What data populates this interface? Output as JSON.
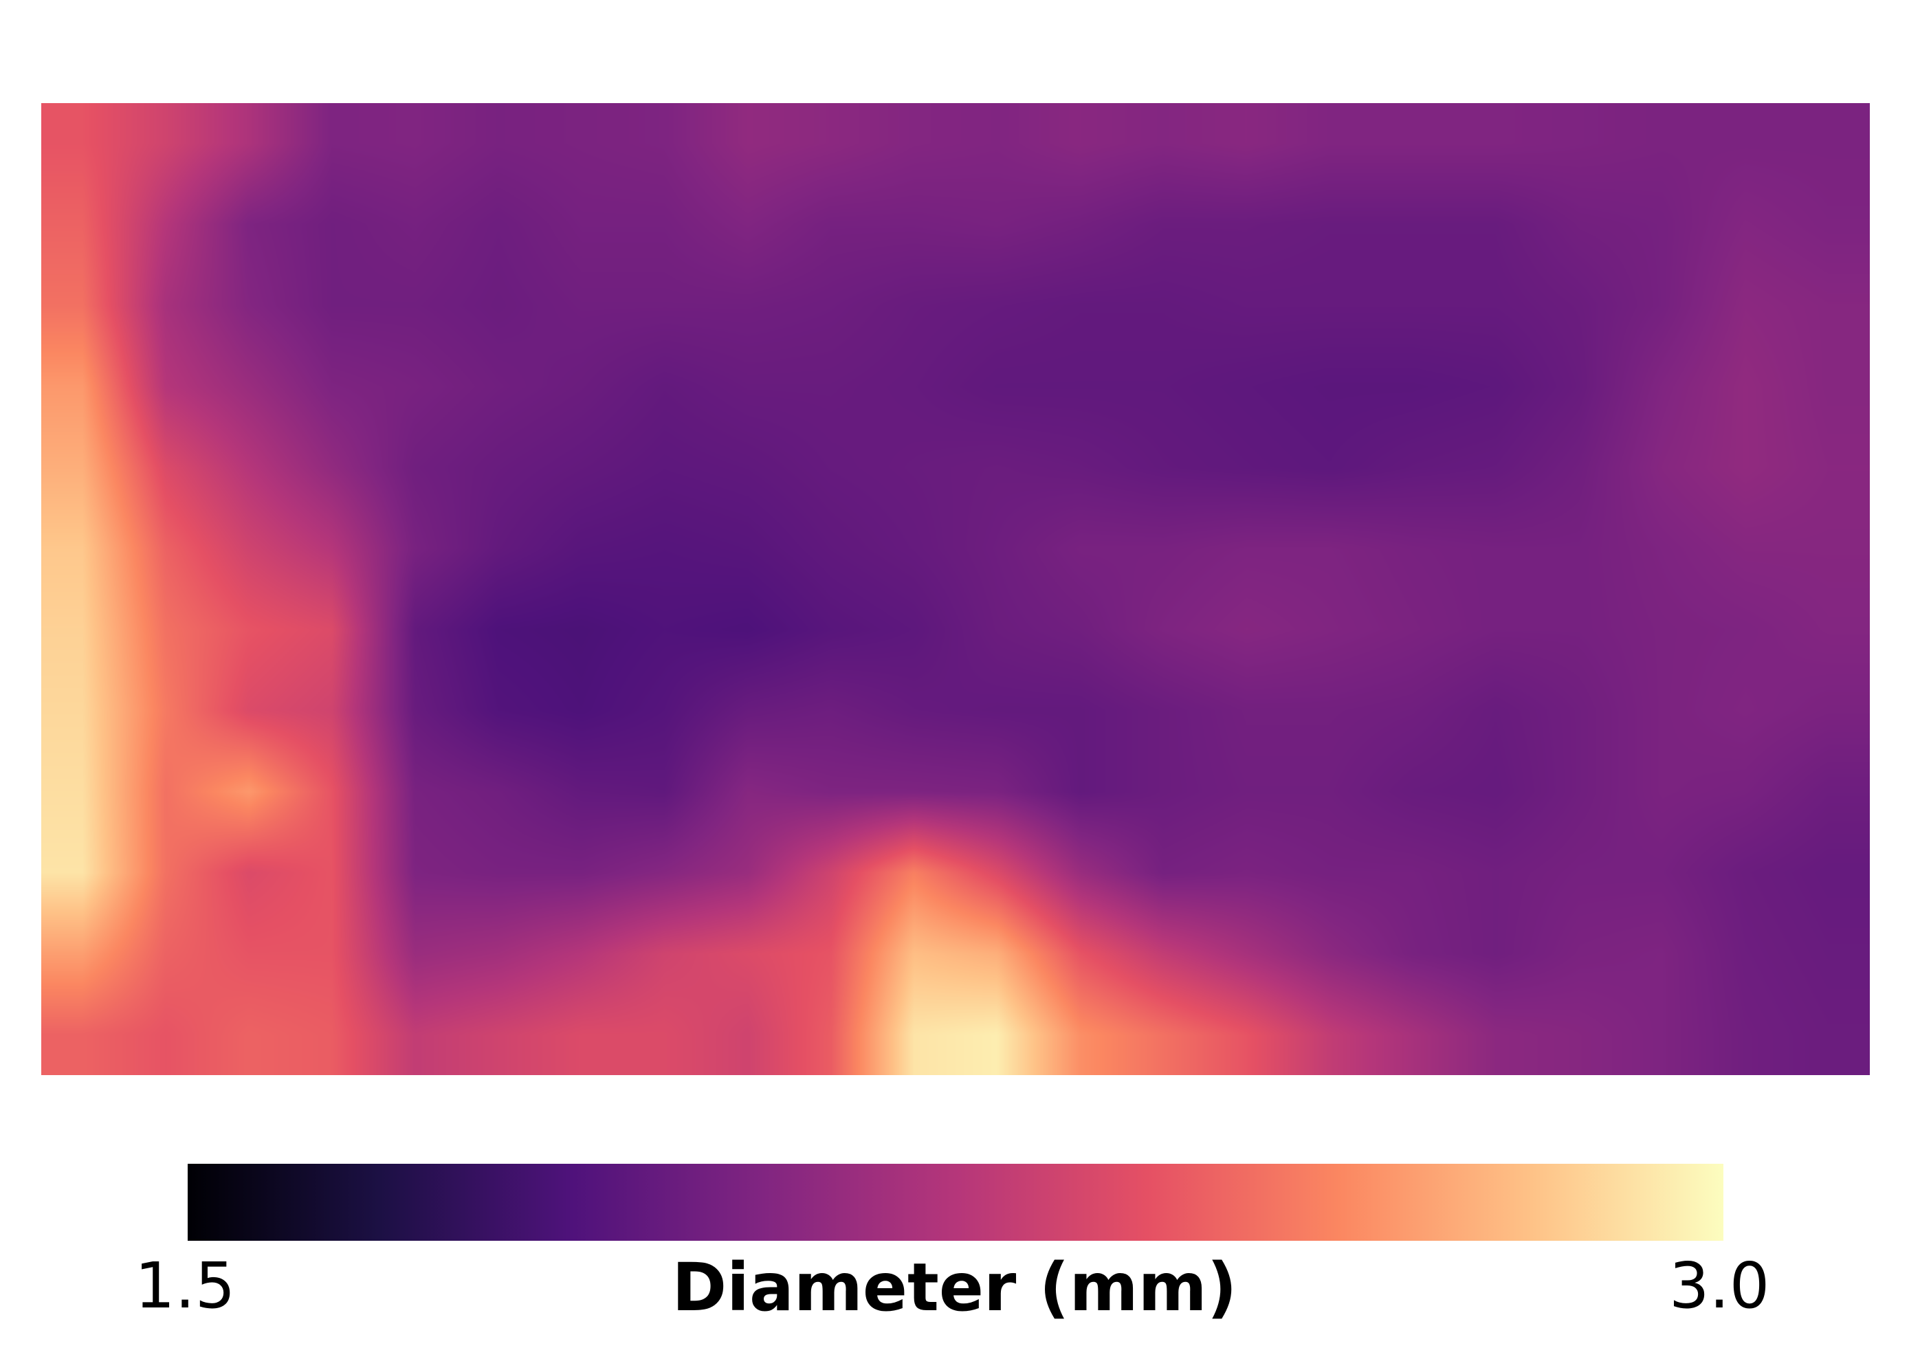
{
  "chart_data": {
    "type": "heatmap",
    "title": "",
    "xlabel": "",
    "ylabel": "",
    "grid": false,
    "colorscale": "magma",
    "colorbar": {
      "orientation": "horizontal",
      "placement": "bottom",
      "label": "Diameter (mm)",
      "min": 1.5,
      "max": 3.0,
      "min_label": "1.5",
      "max_label": "3.0",
      "stops": [
        "#000004",
        "#1c1044",
        "#4f127b",
        "#812581",
        "#b5367a",
        "#e55064",
        "#fb8761",
        "#fec287",
        "#fcfdbf"
      ]
    },
    "grid_size": {
      "rows": 12,
      "cols": 22
    },
    "values": [
      [
        2.45,
        2.35,
        2.22,
        2.05,
        2.06,
        2.03,
        2.04,
        2.05,
        2.12,
        2.1,
        2.07,
        2.06,
        2.09,
        2.07,
        2.09,
        2.06,
        2.06,
        2.06,
        2.05,
        2.04,
        2.04,
        2.04
      ],
      [
        2.5,
        2.25,
        2.05,
        2.0,
        2.02,
        1.99,
        2.02,
        2.02,
        2.06,
        2.02,
        2.02,
        2.03,
        2.01,
        1.98,
        1.98,
        1.97,
        1.97,
        1.97,
        2.01,
        2.02,
        2.07,
        2.05
      ],
      [
        2.55,
        2.2,
        2.07,
        2.0,
        2.0,
        1.98,
        2.0,
        2.0,
        2.0,
        1.99,
        1.97,
        1.96,
        1.95,
        1.95,
        1.96,
        1.96,
        1.96,
        1.96,
        1.98,
        2.02,
        2.1,
        2.08
      ],
      [
        2.68,
        2.25,
        2.15,
        2.05,
        2.03,
        2.0,
        1.98,
        1.95,
        1.97,
        1.97,
        1.96,
        1.94,
        1.94,
        1.94,
        1.93,
        1.92,
        1.92,
        1.93,
        1.97,
        2.06,
        2.12,
        2.08
      ],
      [
        2.75,
        2.4,
        2.25,
        2.12,
        2.0,
        1.97,
        1.95,
        1.93,
        1.94,
        1.96,
        1.97,
        1.98,
        1.97,
        1.95,
        1.94,
        1.93,
        1.95,
        1.96,
        2.0,
        2.08,
        2.12,
        2.09
      ],
      [
        2.83,
        2.5,
        2.35,
        2.25,
        2.03,
        1.95,
        1.91,
        1.9,
        1.91,
        1.94,
        1.96,
        1.99,
        2.03,
        2.03,
        2.05,
        2.05,
        2.03,
        2.02,
        2.02,
        2.05,
        2.08,
        2.08
      ],
      [
        2.86,
        2.55,
        2.45,
        2.4,
        1.95,
        1.87,
        1.86,
        1.88,
        1.87,
        1.91,
        1.93,
        1.98,
        2.0,
        2.05,
        2.08,
        2.06,
        2.04,
        2.02,
        2.02,
        2.04,
        2.05,
        2.07
      ],
      [
        2.88,
        2.58,
        2.4,
        2.35,
        1.97,
        1.89,
        1.87,
        1.9,
        1.97,
        1.99,
        1.96,
        1.95,
        1.95,
        1.98,
        2.01,
        2.01,
        2.0,
        1.97,
        2.0,
        2.04,
        2.06,
        2.04
      ],
      [
        2.9,
        2.55,
        2.68,
        2.45,
        2.03,
        2.0,
        1.95,
        1.94,
        2.08,
        2.05,
        2.05,
        2.04,
        1.95,
        1.98,
        2.0,
        2.0,
        1.97,
        1.96,
        2.0,
        2.04,
        2.03,
        1.99
      ],
      [
        2.92,
        2.55,
        2.4,
        2.45,
        2.05,
        2.03,
        2.03,
        2.08,
        2.15,
        2.35,
        2.6,
        2.4,
        2.15,
        2.02,
        2.04,
        2.02,
        2.02,
        2.0,
        2.02,
        2.02,
        1.98,
        1.96
      ],
      [
        2.7,
        2.5,
        2.45,
        2.45,
        2.15,
        2.18,
        2.25,
        2.35,
        2.4,
        2.45,
        2.8,
        2.75,
        2.45,
        2.3,
        2.2,
        2.1,
        2.03,
        2.0,
        2.04,
        2.05,
        1.99,
        1.97
      ],
      [
        2.5,
        2.45,
        2.5,
        2.48,
        2.3,
        2.35,
        2.4,
        2.4,
        2.35,
        2.48,
        2.92,
        2.95,
        2.65,
        2.55,
        2.45,
        2.3,
        2.2,
        2.1,
        2.08,
        2.05,
        2.0,
        1.98
      ]
    ]
  }
}
